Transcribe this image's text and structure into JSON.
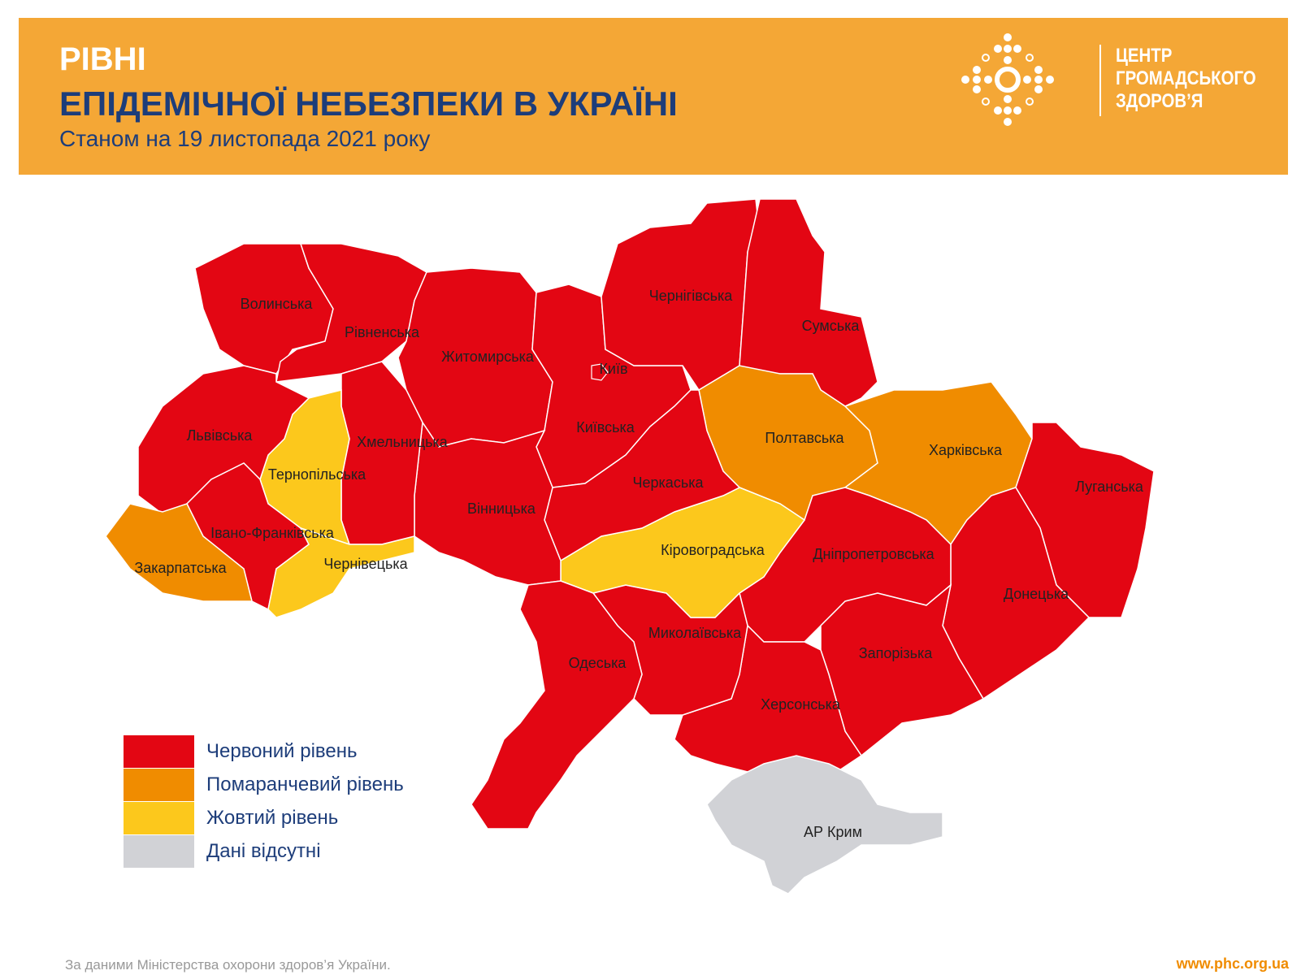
{
  "header": {
    "title_line1": "РІВНІ",
    "title_line2": "ЕПІДЕМІЧНОЇ НЕБЕЗПЕКИ В УКРАЇНІ",
    "subtitle": "Станом на 19 листопада 2021 року",
    "logo_lines": [
      "ЦЕНТР",
      "ГРОМАДСЬКОГО",
      "ЗДОРОВ’Я"
    ]
  },
  "colors": {
    "header_bg": "#f4a736",
    "red": "#e30613",
    "orange": "#f08c00",
    "yellow": "#fcc81c",
    "gray": "#d1d2d6"
  },
  "legend": [
    {
      "level": "red",
      "label": "Червоний рівень"
    },
    {
      "level": "orange",
      "label": "Помаранчевий рівень"
    },
    {
      "level": "yellow",
      "label": "Жовтий рівень"
    },
    {
      "level": "gray",
      "label": "Дані відсутні"
    }
  ],
  "regions": [
    {
      "name": "Волинська",
      "level": "red"
    },
    {
      "name": "Рівненська",
      "level": "red"
    },
    {
      "name": "Житомирська",
      "level": "red"
    },
    {
      "name": "Київська",
      "level": "red"
    },
    {
      "name": "Київ",
      "level": "red"
    },
    {
      "name": "Чернігівська",
      "level": "red"
    },
    {
      "name": "Сумська",
      "level": "red"
    },
    {
      "name": "Полтавська",
      "level": "orange"
    },
    {
      "name": "Харківська",
      "level": "orange"
    },
    {
      "name": "Луганська",
      "level": "red"
    },
    {
      "name": "Донецька",
      "level": "red"
    },
    {
      "name": "Дніпропетровська",
      "level": "red"
    },
    {
      "name": "Запорізька",
      "level": "red"
    },
    {
      "name": "Херсонська",
      "level": "red"
    },
    {
      "name": "Миколаївська",
      "level": "red"
    },
    {
      "name": "Кіровоградська",
      "level": "yellow"
    },
    {
      "name": "Черкаська",
      "level": "red"
    },
    {
      "name": "Вінницька",
      "level": "red"
    },
    {
      "name": "Одеська",
      "level": "red"
    },
    {
      "name": "Хмельницька",
      "level": "red"
    },
    {
      "name": "Тернопільська",
      "level": "yellow"
    },
    {
      "name": "Львівська",
      "level": "red"
    },
    {
      "name": "Івано-Франківська",
      "level": "red"
    },
    {
      "name": "Закарпатська",
      "level": "orange"
    },
    {
      "name": "Чернівецька",
      "level": "yellow"
    },
    {
      "name": "АР Крим",
      "level": "gray"
    }
  ],
  "footer": {
    "source": "За даними Міністерства охорони здоров’я України.",
    "url": "www.phc.org.ua"
  }
}
